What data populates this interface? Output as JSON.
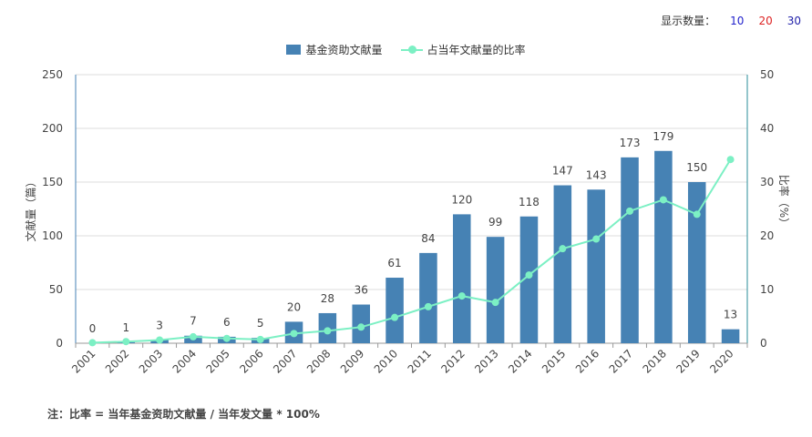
{
  "top_bar": {
    "label": "显示数量：",
    "options": [
      {
        "label": "10",
        "color": "#2222cc"
      },
      {
        "label": "20",
        "color": "#dd2222"
      },
      {
        "label": "30",
        "color": "#2222aa"
      }
    ]
  },
  "note": "注：比率 = 当年基金资助文献量 / 当年发文量 * 100%",
  "colors": {
    "bar": "#4682b4",
    "line": "#7cf0c4",
    "grid": "#dddddd",
    "axis": "#999999",
    "right_axis": "#2a8c9a",
    "left_axis": "#4682b4",
    "label": "#444444"
  },
  "chart_data": {
    "type": "bar",
    "categories": [
      "2001",
      "2002",
      "2003",
      "2004",
      "2005",
      "2006",
      "2007",
      "2008",
      "2009",
      "2010",
      "2011",
      "2012",
      "2013",
      "2014",
      "2015",
      "2016",
      "2017",
      "2018",
      "2019",
      "2020"
    ],
    "series": [
      {
        "name": "基金资助文献量",
        "type": "bar",
        "axis": "left",
        "values": [
          0,
          1,
          3,
          7,
          6,
          5,
          20,
          28,
          36,
          61,
          84,
          120,
          99,
          118,
          147,
          143,
          173,
          179,
          150,
          13
        ],
        "data_labels": [
          "0",
          "1",
          "3",
          "7",
          "6",
          "5",
          "20",
          "28",
          "36",
          "61",
          "84",
          "120",
          "99",
          "118",
          "147",
          "143",
          "173",
          "179",
          "150",
          "13"
        ]
      },
      {
        "name": "占当年文献量的比率",
        "type": "line",
        "axis": "right",
        "values": [
          0.1,
          0.3,
          0.6,
          1.2,
          0.9,
          0.7,
          1.8,
          2.3,
          3.0,
          4.8,
          6.8,
          8.8,
          7.6,
          12.7,
          17.6,
          19.4,
          24.6,
          26.7,
          24.0,
          34.2
        ]
      }
    ],
    "ylabel": "文献量（篇）",
    "y2label": "比率（%）",
    "ylim": [
      0,
      250
    ],
    "y2lim": [
      0,
      50
    ],
    "yticks": [
      "0",
      "50",
      "100",
      "150",
      "200",
      "250"
    ],
    "y2ticks": [
      "0",
      "10",
      "20",
      "30",
      "40",
      "50"
    ],
    "grid": true,
    "legend_position": "top-center"
  }
}
